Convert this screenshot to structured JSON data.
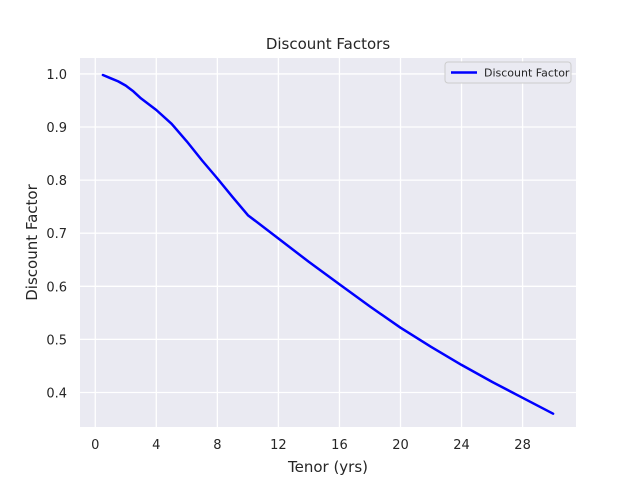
{
  "chart_data": {
    "type": "line",
    "title": "Discount Factors",
    "xlabel": "Tenor (yrs)",
    "ylabel": "Discount Factor",
    "xlim": [
      -1.0,
      31.5
    ],
    "ylim": [
      0.335,
      1.03
    ],
    "xticks": [
      0,
      4,
      8,
      12,
      16,
      20,
      24,
      28
    ],
    "xtick_labels": [
      "0",
      "4",
      "8",
      "12",
      "16",
      "20",
      "24",
      "28"
    ],
    "yticks": [
      0.4,
      0.5,
      0.6,
      0.7,
      0.8,
      0.9,
      1.0
    ],
    "ytick_labels": [
      "0.4",
      "0.5",
      "0.6",
      "0.7",
      "0.8",
      "0.9",
      "1.0"
    ],
    "grid": true,
    "legend_position": "top-right",
    "colors": {
      "plot_background": "#eaeaf2",
      "grid": "#ffffff",
      "series": "#0000ff"
    },
    "series": [
      {
        "name": "Discount Factor",
        "color": "#0000ff",
        "x": [
          0.5,
          1,
          1.5,
          2,
          2.5,
          3,
          4,
          5,
          6,
          7,
          8,
          9,
          10,
          12,
          14,
          16,
          18,
          20,
          22,
          24,
          26,
          28,
          30
        ],
        "y": [
          0.998,
          0.992,
          0.986,
          0.978,
          0.967,
          0.954,
          0.932,
          0.906,
          0.873,
          0.837,
          0.803,
          0.768,
          0.734,
          0.69,
          0.646,
          0.604,
          0.562,
          0.522,
          0.486,
          0.452,
          0.42,
          0.39,
          0.36
        ]
      }
    ]
  }
}
